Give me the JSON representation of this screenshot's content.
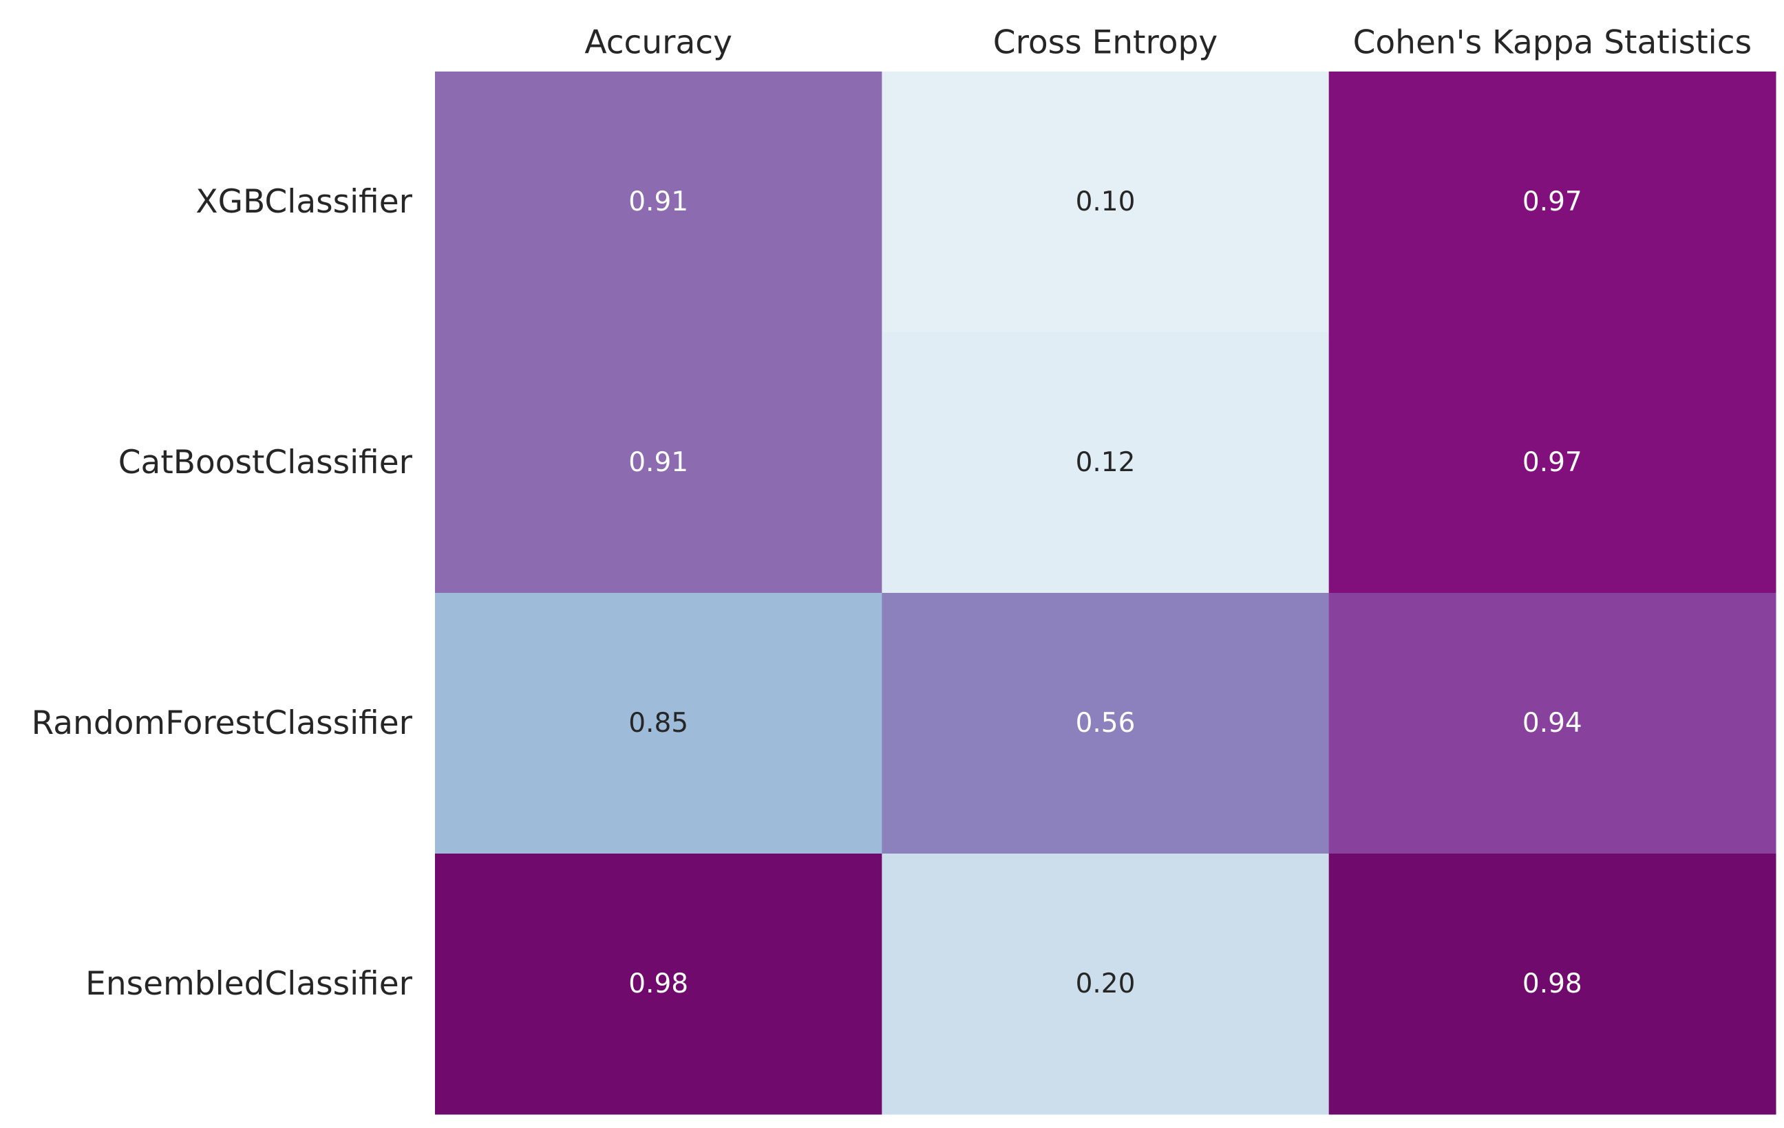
{
  "chart_data": {
    "type": "heatmap",
    "columns": [
      "Accuracy",
      "Cross Entropy",
      "Cohen's Kappa Statistics"
    ],
    "rows": [
      "XGBClassifier",
      "CatBoostClassifier",
      "RandomForestClassifier",
      "EnsembledClassifier"
    ],
    "values": [
      [
        0.91,
        0.1,
        0.97
      ],
      [
        0.91,
        0.12,
        0.97
      ],
      [
        0.85,
        0.56,
        0.94
      ],
      [
        0.98,
        0.2,
        0.98
      ]
    ],
    "value_labels": [
      [
        "0.91",
        "0.10",
        "0.97"
      ],
      [
        "0.91",
        "0.12",
        "0.97"
      ],
      [
        "0.85",
        "0.56",
        "0.94"
      ],
      [
        "0.98",
        "0.20",
        "0.98"
      ]
    ],
    "colormap": "BuPu",
    "colorbar": false,
    "grid": false,
    "xlabel": "",
    "ylabel": "",
    "title": "",
    "column_label_position": "top",
    "colors": {
      "low": "#f7fcfd",
      "mid": "#8c8fc1",
      "high": "#4d004b"
    }
  }
}
